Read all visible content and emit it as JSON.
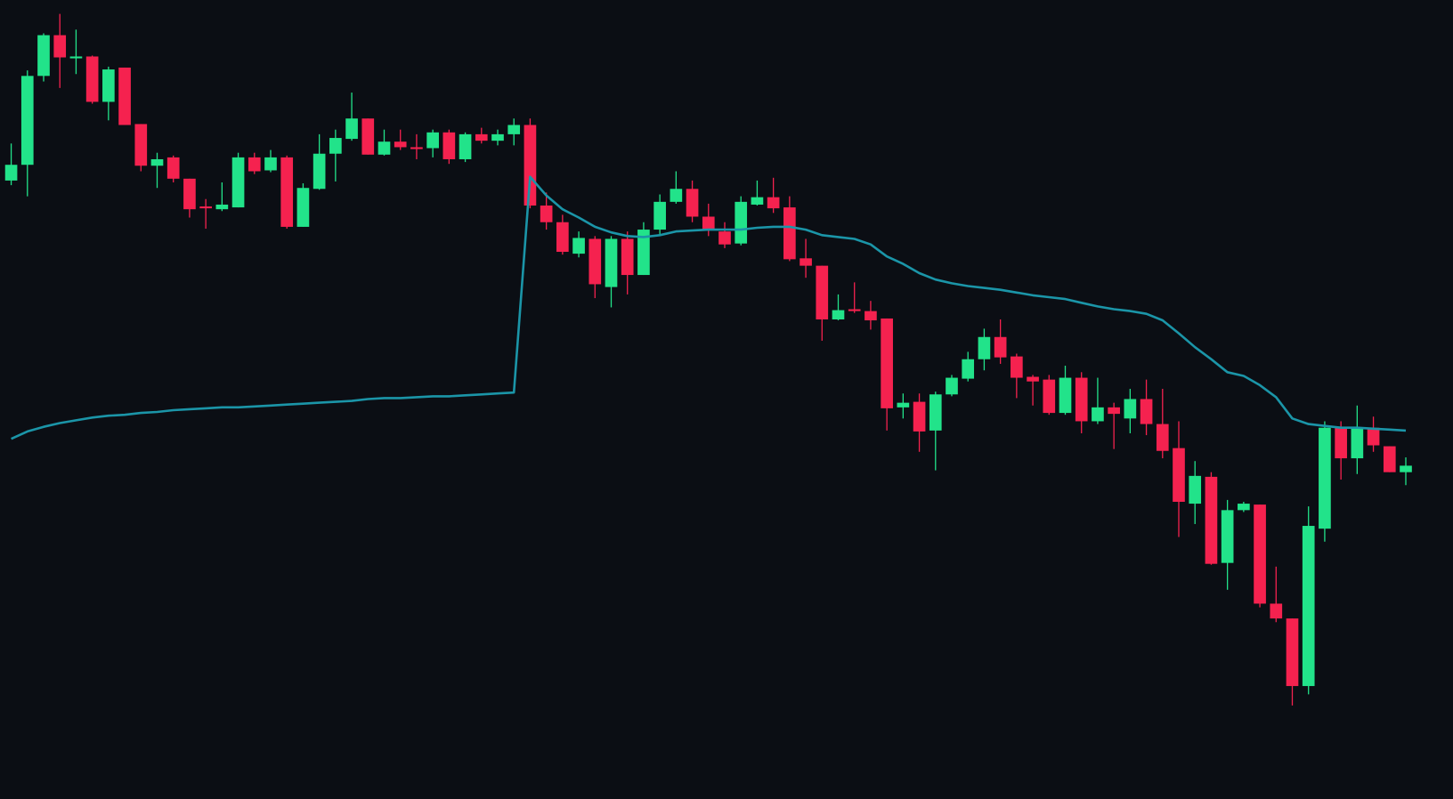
{
  "chart_data": {
    "type": "candlestick",
    "up_color": "#22e38a",
    "down_color": "#f5224f",
    "background": "#0b0e14",
    "xlim": [
      -0.69,
      88.91
    ],
    "ylim": [
      0,
      863
    ],
    "open": [
      668,
      685,
      781,
      825,
      800,
      802,
      753,
      790,
      729,
      684,
      693,
      670,
      640,
      637,
      639,
      693,
      679,
      693,
      618,
      659,
      697,
      713,
      735,
      696,
      710,
      704,
      703,
      720,
      691,
      718,
      711,
      718,
      728,
      641,
      623,
      589,
      605,
      553,
      605,
      566,
      615,
      645,
      659,
      629,
      613,
      600,
      642,
      650,
      639,
      584,
      576,
      518,
      529,
      527,
      519,
      423,
      429,
      398,
      437,
      454,
      475,
      499,
      478,
      456,
      453,
      417,
      455,
      408,
      423,
      411,
      432,
      405,
      379,
      319,
      348,
      255,
      312,
      318,
      211,
      195,
      122,
      292,
      401,
      368,
      401,
      381,
      353
    ],
    "high": [
      708,
      787,
      827,
      848,
      831,
      803,
      791,
      790,
      729,
      698,
      695,
      670,
      648,
      666,
      698,
      698,
      701,
      695,
      665,
      718,
      723,
      763,
      735,
      723,
      723,
      718,
      723,
      723,
      720,
      725,
      723,
      735,
      735,
      655,
      631,
      613,
      608,
      608,
      613,
      623,
      653,
      678,
      668,
      643,
      623,
      651,
      668,
      671,
      651,
      605,
      576,
      545,
      558,
      538,
      519,
      438,
      438,
      440,
      458,
      483,
      508,
      518,
      481,
      458,
      458,
      468,
      461,
      455,
      428,
      443,
      453,
      443,
      408,
      365,
      353,
      323,
      321,
      318,
      251,
      195,
      316,
      408,
      408,
      425,
      413,
      381,
      369
    ],
    "low": [
      663,
      651,
      775,
      768,
      783,
      751,
      733,
      728,
      678,
      660,
      666,
      628,
      616,
      635,
      639,
      675,
      677,
      616,
      618,
      658,
      667,
      711,
      696,
      695,
      701,
      691,
      693,
      686,
      688,
      708,
      706,
      706,
      638,
      615,
      588,
      585,
      541,
      531,
      545,
      566,
      608,
      643,
      623,
      608,
      595,
      598,
      641,
      633,
      581,
      563,
      495,
      517,
      525,
      507,
      398,
      411,
      375,
      355,
      435,
      451,
      463,
      470,
      433,
      425,
      415,
      415,
      395,
      405,
      378,
      395,
      393,
      368,
      283,
      297,
      253,
      226,
      310,
      207,
      191,
      101,
      113,
      278,
      345,
      351,
      375,
      353,
      339
    ],
    "close": [
      685,
      781,
      825,
      801,
      802,
      753,
      788,
      728,
      684,
      691,
      670,
      637,
      638,
      642,
      693,
      678,
      693,
      618,
      660,
      697,
      714,
      735,
      696,
      710,
      704,
      702,
      720,
      691,
      718,
      711,
      718,
      728,
      641,
      623,
      591,
      606,
      556,
      605,
      566,
      615,
      645,
      659,
      629,
      615,
      599,
      645,
      650,
      638,
      583,
      576,
      518,
      528,
      527,
      517,
      422,
      428,
      397,
      437,
      455,
      475,
      499,
      477,
      455,
      451,
      417,
      455,
      408,
      423,
      416,
      432,
      405,
      376,
      321,
      349,
      254,
      312,
      319,
      211,
      195,
      122,
      295,
      401,
      368,
      401,
      382,
      353,
      360
    ],
    "overlay": {
      "type": "line",
      "color": "#1b95a8",
      "values": [
        389,
        397,
        402,
        406,
        409,
        412,
        414,
        415,
        417,
        418,
        420,
        421,
        422,
        423,
        423,
        424,
        425,
        426,
        427,
        428,
        429,
        430,
        432,
        433,
        433,
        434,
        435,
        435,
        436,
        437,
        438,
        439,
        672,
        652,
        637,
        628,
        618,
        612,
        608,
        607,
        609,
        613,
        614,
        615,
        615,
        615,
        617,
        618,
        618,
        615,
        609,
        607,
        605,
        599,
        586,
        578,
        568,
        561,
        557,
        554,
        552,
        550,
        547,
        544,
        542,
        540,
        536,
        532,
        529,
        527,
        524,
        517,
        503,
        488,
        475,
        461,
        457,
        447,
        434,
        411,
        405,
        403,
        401,
        401,
        400,
        399,
        398
      ]
    }
  }
}
